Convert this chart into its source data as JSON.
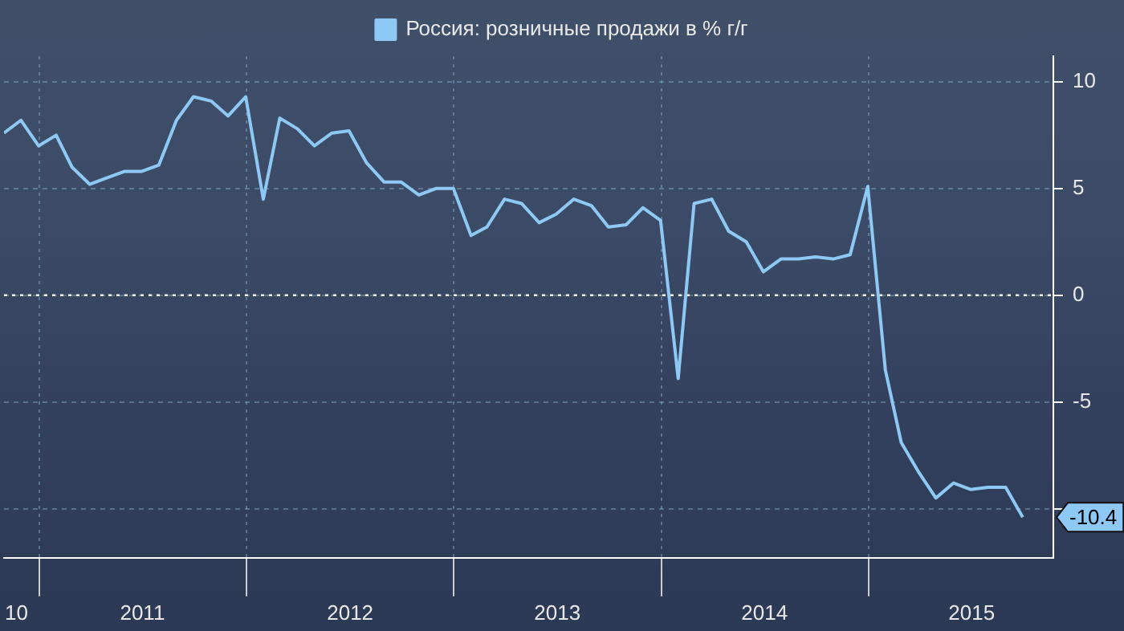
{
  "chart_data": {
    "type": "line",
    "x": [
      "2010-10-31",
      "2010-11-30",
      "2010-12-31",
      "2011-01-31",
      "2011-02-28",
      "2011-03-31",
      "2011-04-30",
      "2011-05-31",
      "2011-06-30",
      "2011-07-31",
      "2011-08-31",
      "2011-09-30",
      "2011-10-31",
      "2011-11-30",
      "2011-12-31",
      "2012-01-31",
      "2012-02-29",
      "2012-03-31",
      "2012-04-30",
      "2012-05-31",
      "2012-06-30",
      "2012-07-31",
      "2012-08-31",
      "2012-09-30",
      "2012-10-31",
      "2012-11-30",
      "2012-12-31",
      "2013-01-31",
      "2013-02-28",
      "2013-03-31",
      "2013-04-30",
      "2013-05-31",
      "2013-06-30",
      "2013-07-31",
      "2013-08-31",
      "2013-09-30",
      "2013-10-31",
      "2013-11-30",
      "2013-12-31",
      "2014-01-31",
      "2014-02-28",
      "2014-03-31",
      "2014-04-30",
      "2014-05-31",
      "2014-06-30",
      "2014-07-31",
      "2014-08-31",
      "2014-09-30",
      "2014-10-31",
      "2014-11-30",
      "2014-12-31",
      "2015-01-31",
      "2015-02-28",
      "2015-03-31",
      "2015-04-30",
      "2015-05-31",
      "2015-06-30",
      "2015-07-31",
      "2015-08-31",
      "2015-09-30"
    ],
    "series": [
      {
        "name": "Россия: розничные продажи в % г/г",
        "color": "#8ec8f5",
        "values": [
          7.6,
          8.2,
          7.0,
          7.5,
          6.0,
          5.2,
          5.5,
          5.8,
          5.8,
          6.1,
          8.2,
          9.3,
          9.1,
          8.4,
          9.3,
          4.5,
          8.3,
          7.8,
          7.0,
          7.6,
          7.7,
          6.2,
          5.3,
          5.3,
          4.7,
          5.0,
          5.0,
          2.8,
          3.2,
          4.5,
          4.3,
          3.4,
          3.8,
          4.5,
          4.2,
          3.2,
          3.3,
          4.1,
          3.5,
          -3.9,
          4.3,
          4.5,
          3.0,
          2.5,
          1.1,
          1.7,
          1.7,
          1.8,
          1.7,
          1.9,
          5.1,
          -3.5,
          -6.9,
          -8.3,
          -9.5,
          -8.8,
          -9.1,
          -9.0,
          -9.0,
          -10.4
        ]
      }
    ],
    "xlim": [
      "2010-10-31",
      "2015-11-23"
    ],
    "xticks": [
      {
        "value": "2010-11-22",
        "label": "10"
      },
      {
        "value": "2011-01-01",
        "label": null
      },
      {
        "value": "2011-07-02",
        "label": "2011"
      },
      {
        "value": "2012-01-01",
        "label": null
      },
      {
        "value": "2012-07-02",
        "label": "2012"
      },
      {
        "value": "2013-01-01",
        "label": null
      },
      {
        "value": "2013-07-02",
        "label": "2013"
      },
      {
        "value": "2014-01-01",
        "label": null
      },
      {
        "value": "2014-07-02",
        "label": "2014"
      },
      {
        "value": "2015-01-01",
        "label": null
      },
      {
        "value": "2015-07-02",
        "label": "2015"
      }
    ],
    "ylim": [
      -12.3,
      11.2
    ],
    "yticks": [
      10,
      5,
      0,
      -5,
      {
        "value": -10,
        "label": null
      }
    ],
    "ref_lines": [
      {
        "axis": "y",
        "value": 0,
        "label": null,
        "color": "#ffffff",
        "line_style": "dotted"
      }
    ],
    "annotations": [
      "-10.4"
    ],
    "grid": true,
    "legend": "top",
    "marker": "none",
    "line_style": "solid"
  }
}
